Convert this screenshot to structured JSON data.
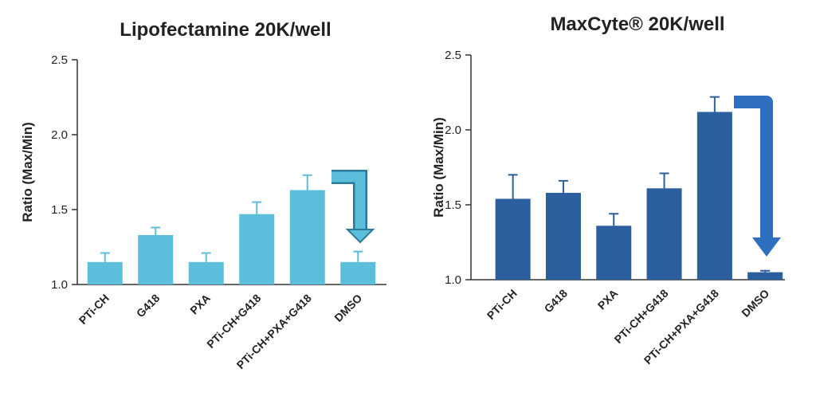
{
  "chart_data": [
    {
      "type": "bar",
      "title": "Lipofectamine 20K/well",
      "y_label": "Ratio (Max/Min)",
      "categories": [
        "PTi-CH",
        "G418",
        "PXA",
        "PTi-CH+G418",
        "PTi-CH+PXA+G418",
        "DMSO"
      ],
      "values": [
        1.15,
        1.33,
        1.15,
        1.47,
        1.63,
        1.15
      ],
      "errors": [
        0.06,
        0.05,
        0.06,
        0.08,
        0.1,
        0.07
      ],
      "color": "#5bbfdb",
      "ylim": [
        1,
        2.5
      ],
      "yticks": [
        {
          "value": 1,
          "label": "1.0"
        },
        1.5,
        {
          "value": 2,
          "label": "2.0"
        },
        2.5
      ]
    },
    {
      "type": "bar",
      "title": "MaxCyte® 20K/well",
      "y_label": "Ratio (Max/Min)",
      "categories": [
        "PTi-CH",
        "G418",
        "PXA",
        "PTi-CH+G418",
        "PTi-CH+PXA+G418",
        "DMSO"
      ],
      "values": [
        1.54,
        1.58,
        1.36,
        1.61,
        2.12,
        1.05
      ],
      "errors": [
        0.16,
        0.08,
        0.08,
        0.1,
        0.1,
        0.01
      ],
      "color": "#2b5f9e",
      "ylim": [
        1,
        2.5
      ],
      "yticks": [
        {
          "value": 1,
          "label": "1.0"
        },
        1.5,
        {
          "value": 2,
          "label": "2.0"
        },
        2.5
      ]
    }
  ]
}
